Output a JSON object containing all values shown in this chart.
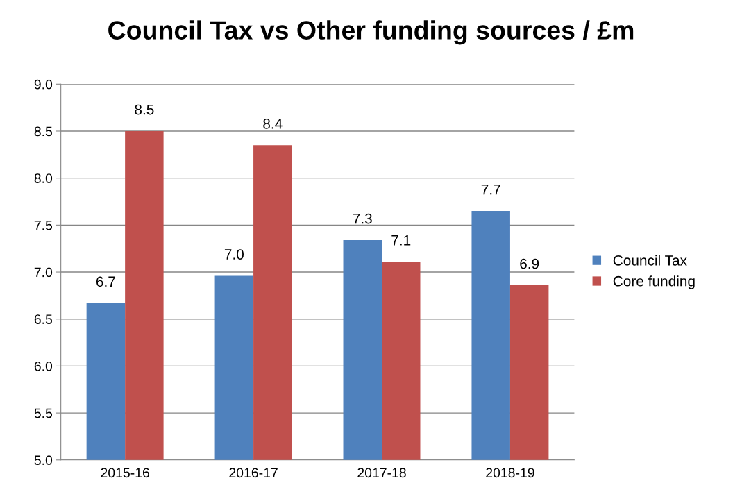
{
  "chart_data": {
    "type": "bar",
    "title": "Council Tax vs Other funding sources / £m",
    "categories": [
      "2015-16",
      "2016-17",
      "2017-18",
      "2018-19"
    ],
    "series": [
      {
        "name": "Council Tax",
        "color": "#4f81bd",
        "values": [
          6.67,
          6.96,
          7.34,
          7.65
        ],
        "value_labels": [
          "6.7",
          "7.0",
          "7.3",
          "7.7"
        ]
      },
      {
        "name": "Core funding",
        "color": "#c0504d",
        "values": [
          8.5,
          8.35,
          7.11,
          6.86
        ],
        "value_labels": [
          "8.5",
          "8.4",
          "7.1",
          "6.9"
        ]
      }
    ],
    "ylim": [
      5.0,
      9.0
    ],
    "yticks": [
      {
        "value": 5.0,
        "label": "5.0"
      },
      {
        "value": 5.5,
        "label": "5.5"
      },
      {
        "value": 6.0,
        "label": "6.0"
      },
      {
        "value": 6.5,
        "label": "6.5"
      },
      {
        "value": 7.0,
        "label": "7.0"
      },
      {
        "value": 7.5,
        "label": "7.5"
      },
      {
        "value": 8.0,
        "label": "8.0"
      },
      {
        "value": 8.5,
        "label": "8.5"
      },
      {
        "value": 9.0,
        "label": "9.0"
      }
    ],
    "grid": "y",
    "legend": "right"
  }
}
